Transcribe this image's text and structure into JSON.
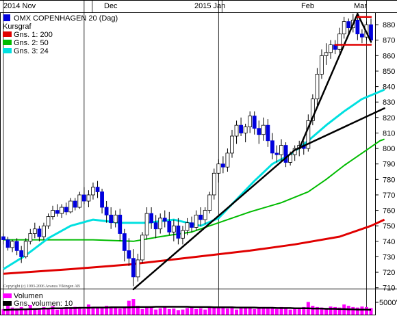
{
  "chart_data": {
    "type": "candlestick",
    "title": "OMX COPENHAGEN 20 (Dag)",
    "copyright": "Copyright (c) 1993-2006 Avanza Vikingen AB",
    "x_labels": [
      "2014 Nov",
      "Dec",
      "2015 Jan",
      "Feb",
      "Mar"
    ],
    "price_axis": {
      "ticks": [
        710,
        720,
        730,
        740,
        750,
        760,
        770,
        780,
        790,
        800,
        810,
        820,
        830,
        840,
        850,
        860,
        870,
        880
      ],
      "ylim": [
        705,
        888
      ]
    },
    "volume_axis": {
      "tick_label": "5000\""
    },
    "legend": [
      {
        "label": "Kursgraf",
        "color": ""
      },
      {
        "label": "Gns. 1: 200",
        "color": "#e00000"
      },
      {
        "label": "Gns. 2: 50",
        "color": "#00bb00"
      },
      {
        "label": "Gns. 3: 24",
        "color": "#00e0e0"
      }
    ],
    "volume_legend": [
      {
        "label": "Volumen",
        "color": "#ff00ff"
      },
      {
        "label": "Gns. volumen: 10",
        "color": "#000000"
      }
    ],
    "colors": {
      "up": "#ffffff",
      "down": "#0000dd",
      "ma200": "#e00000",
      "ma50": "#00bb00",
      "ma24": "#00e0e0",
      "volume": "#ff00ff"
    },
    "candles": [
      [
        743,
        745,
        738,
        741
      ],
      [
        741,
        743,
        734,
        736
      ],
      [
        736,
        741,
        733,
        740
      ],
      [
        740,
        742,
        731,
        734
      ],
      [
        734,
        737,
        726,
        730
      ],
      [
        730,
        742,
        729,
        740
      ],
      [
        740,
        748,
        738,
        745
      ],
      [
        745,
        752,
        742,
        748
      ],
      [
        748,
        750,
        740,
        743
      ],
      [
        743,
        752,
        741,
        750
      ],
      [
        750,
        758,
        748,
        756
      ],
      [
        756,
        763,
        754,
        760
      ],
      [
        760,
        764,
        756,
        758
      ],
      [
        758,
        764,
        755,
        762
      ],
      [
        762,
        765,
        757,
        759
      ],
      [
        759,
        768,
        758,
        766
      ],
      [
        766,
        768,
        760,
        762
      ],
      [
        762,
        772,
        761,
        770
      ],
      [
        770,
        775,
        764,
        766
      ],
      [
        766,
        773,
        762,
        770
      ],
      [
        770,
        778,
        767,
        775
      ],
      [
        775,
        779,
        768,
        772
      ],
      [
        772,
        774,
        758,
        762
      ],
      [
        762,
        766,
        752,
        757
      ],
      [
        757,
        762,
        748,
        752
      ],
      [
        752,
        760,
        749,
        757
      ],
      [
        757,
        761,
        740,
        745
      ],
      [
        745,
        748,
        727,
        734
      ],
      [
        734,
        742,
        724,
        729
      ],
      [
        729,
        735,
        711,
        717
      ],
      [
        717,
        732,
        714,
        728
      ],
      [
        728,
        746,
        726,
        744
      ],
      [
        744,
        762,
        741,
        758
      ],
      [
        758,
        762,
        748,
        752
      ],
      [
        752,
        757,
        742,
        748
      ],
      [
        748,
        758,
        745,
        755
      ],
      [
        755,
        760,
        749,
        753
      ],
      [
        753,
        759,
        744,
        746
      ],
      [
        746,
        754,
        740,
        750
      ],
      [
        750,
        755,
        738,
        742
      ],
      [
        742,
        750,
        738,
        747
      ],
      [
        747,
        755,
        744,
        752
      ],
      [
        752,
        756,
        746,
        749
      ],
      [
        749,
        760,
        747,
        757
      ],
      [
        757,
        762,
        750,
        754
      ],
      [
        754,
        762,
        751,
        760
      ],
      [
        760,
        772,
        758,
        770
      ],
      [
        770,
        787,
        767,
        784
      ],
      [
        784,
        793,
        778,
        790
      ],
      [
        790,
        795,
        784,
        788
      ],
      [
        788,
        800,
        785,
        797
      ],
      [
        797,
        812,
        794,
        808
      ],
      [
        808,
        818,
        803,
        815
      ],
      [
        815,
        820,
        808,
        810
      ],
      [
        810,
        816,
        804,
        814
      ],
      [
        814,
        824,
        810,
        821
      ],
      [
        821,
        824,
        809,
        813
      ],
      [
        813,
        818,
        803,
        809
      ],
      [
        809,
        820,
        805,
        815
      ],
      [
        815,
        819,
        801,
        805
      ],
      [
        805,
        810,
        793,
        797
      ],
      [
        797,
        802,
        791,
        796
      ],
      [
        796,
        806,
        791,
        802
      ],
      [
        802,
        804,
        788,
        791
      ],
      [
        791,
        798,
        789,
        796
      ],
      [
        796,
        802,
        792,
        800
      ],
      [
        800,
        805,
        795,
        802
      ],
      [
        802,
        805,
        796,
        800
      ],
      [
        800,
        822,
        798,
        818
      ],
      [
        818,
        835,
        815,
        832
      ],
      [
        832,
        852,
        828,
        848
      ],
      [
        848,
        864,
        845,
        860
      ],
      [
        860,
        868,
        854,
        862
      ],
      [
        862,
        870,
        858,
        867
      ],
      [
        867,
        870,
        861,
        864
      ],
      [
        864,
        878,
        862,
        874
      ],
      [
        874,
        885,
        871,
        882
      ],
      [
        882,
        884,
        874,
        878
      ],
      [
        878,
        887,
        875,
        883
      ],
      [
        883,
        886,
        870,
        874
      ],
      [
        874,
        877,
        868,
        872
      ],
      [
        872,
        882,
        870,
        880
      ],
      [
        880,
        884,
        868,
        870
      ]
    ],
    "ma200": [
      [
        0,
        719
      ],
      [
        15,
        722
      ],
      [
        28,
        725
      ],
      [
        40,
        729
      ],
      [
        55,
        734
      ],
      [
        65,
        738
      ],
      [
        75,
        743
      ],
      [
        82,
        750
      ],
      [
        85,
        754
      ]
    ],
    "ma50": [
      [
        0,
        741
      ],
      [
        10,
        741
      ],
      [
        20,
        741
      ],
      [
        29,
        740
      ],
      [
        35,
        743
      ],
      [
        42,
        746
      ],
      [
        48,
        752
      ],
      [
        55,
        759
      ],
      [
        62,
        765
      ],
      [
        68,
        772
      ],
      [
        72,
        780
      ],
      [
        76,
        789
      ],
      [
        80,
        797
      ],
      [
        84,
        805
      ],
      [
        85,
        806
      ]
    ],
    "ma24": [
      [
        0,
        722
      ],
      [
        5,
        731
      ],
      [
        10,
        742
      ],
      [
        15,
        750
      ],
      [
        20,
        754
      ],
      [
        26,
        752
      ],
      [
        32,
        752
      ],
      [
        38,
        754
      ],
      [
        44,
        750
      ],
      [
        48,
        755
      ],
      [
        52,
        767
      ],
      [
        56,
        779
      ],
      [
        60,
        790
      ],
      [
        64,
        796
      ],
      [
        68,
        805
      ],
      [
        72,
        815
      ],
      [
        76,
        824
      ],
      [
        80,
        832
      ],
      [
        85,
        838
      ]
    ],
    "trendlines": [
      {
        "x1": 29,
        "y1": 709,
        "x2": 65,
        "y2": 799,
        "color": "#000000"
      },
      {
        "x1": 65,
        "y1": 799,
        "x2": 85,
        "y2": 826,
        "color": "#000000"
      },
      {
        "x1": 66,
        "y1": 800,
        "x2": 79,
        "y2": 887,
        "color": "#000000"
      },
      {
        "x1": 79,
        "y1": 887,
        "x2": 82,
        "y2": 869,
        "color": "#000000"
      },
      {
        "x1": 74,
        "y1": 867,
        "x2": 82,
        "y2": 867,
        "color": "#e00000"
      },
      {
        "x1": 79,
        "y1": 885,
        "x2": 82,
        "y2": 885,
        "color": "#e00000"
      }
    ],
    "volume_avg": [
      0.18,
      0.19,
      0.2,
      0.2,
      0.21,
      0.21,
      0.22,
      0.22,
      0.23,
      0.24,
      0.24,
      0.25,
      0.25,
      0.25,
      0.26,
      0.26,
      0.26,
      0.27,
      0.27,
      0.27,
      0.28,
      0.28,
      0.28,
      0.28,
      0.29,
      0.29,
      0.29,
      0.29,
      0.29,
      0.3,
      0.3,
      0.3,
      0.3,
      0.3,
      0.31,
      0.31,
      0.31,
      0.31,
      0.31,
      0.31,
      0.31,
      0.31,
      0.3,
      0.3,
      0.3,
      0.3,
      0.3,
      0.29,
      0.29,
      0.29,
      0.29,
      0.29,
      0.28,
      0.28,
      0.28,
      0.28,
      0.28,
      0.27,
      0.27,
      0.27,
      0.27,
      0.26,
      0.26,
      0.26,
      0.26,
      0.25,
      0.25,
      0.25,
      0.25,
      0.24,
      0.24,
      0.24,
      0.23,
      0.23,
      0.23,
      0.22,
      0.22,
      0.21,
      0.21,
      0.2,
      0.2,
      0.2,
      0.19
    ],
    "volumes": [
      0.22,
      0.35,
      0.28,
      0.25,
      0.3,
      0.24,
      0.38,
      0.26,
      0.22,
      0.3,
      0.27,
      0.33,
      0.2,
      0.25,
      0.29,
      0.24,
      0.31,
      0.26,
      0.22,
      0.4,
      0.28,
      0.25,
      0.3,
      0.35,
      0.27,
      0.32,
      0.24,
      0.3,
      0.55,
      0.62,
      0.35,
      0.22,
      0.3,
      0.28,
      0.2,
      0.25,
      0.3,
      0.22,
      0.24,
      0.18,
      0.2,
      0.26,
      0.3,
      0.22,
      0.25,
      0.2,
      0.28,
      0.32,
      0.26,
      0.3,
      0.24,
      0.28,
      0.2,
      0.25,
      0.3,
      0.27,
      0.22,
      0.26,
      0.3,
      0.24,
      0.28,
      0.22,
      0.3,
      0.25,
      0.2,
      0.28,
      0.26,
      0.3,
      0.5,
      0.35,
      0.3,
      0.28,
      0.26,
      0.32,
      0.3,
      0.28,
      0.4,
      0.35,
      0.3,
      0.28,
      0.32,
      0.3,
      0.26
    ]
  }
}
